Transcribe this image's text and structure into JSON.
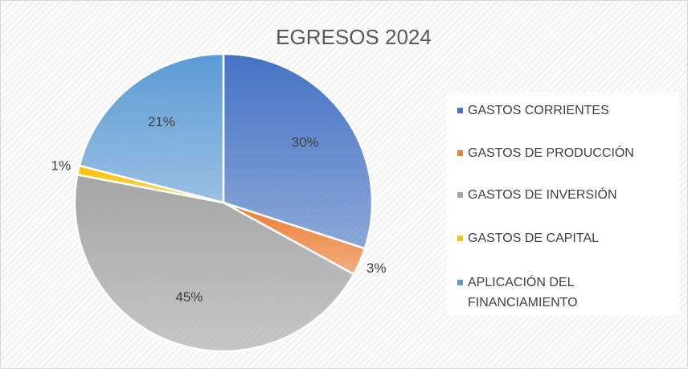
{
  "chart_data": {
    "type": "pie",
    "title": "EGRESOS 2024",
    "categories": [
      "GASTOS CORRIENTES",
      "GASTOS DE PRODUCCIÓN",
      "GASTOS DE INVERSIÓN",
      "GASTOS DE CAPITAL",
      "APLICACIÓN DEL FINANCIAMIENTO"
    ],
    "values": [
      30,
      3,
      45,
      1,
      21
    ],
    "value_labels": [
      "30%",
      "3%",
      "45%",
      "1%",
      "21%"
    ],
    "colors": [
      "#4472c4",
      "#ed7d31",
      "#a5a5a5",
      "#ffc000",
      "#5b9bd5"
    ],
    "legend": "right"
  }
}
